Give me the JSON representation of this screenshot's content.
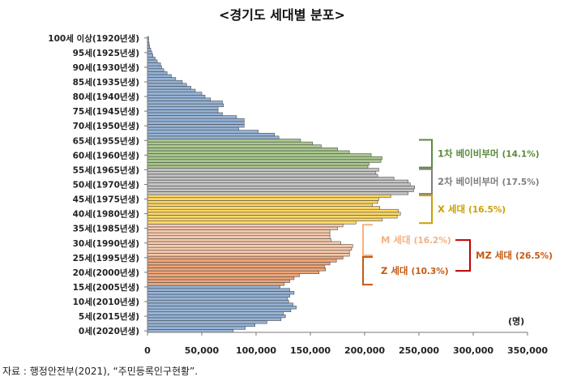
{
  "chart_data": {
    "type": "bar",
    "orientation": "horizontal",
    "title": "<경기도 세대별 분포>",
    "unit_label": "(명)",
    "xlim": [
      0,
      350000
    ],
    "x_ticks": [
      0,
      50000,
      100000,
      150000,
      200000,
      250000,
      300000,
      350000
    ],
    "x_tick_labels": [
      "0",
      "50,000",
      "100,000",
      "150,000",
      "200,000",
      "250,000",
      "300,000",
      "350,000"
    ],
    "age_labels": [
      {
        "age": 0,
        "label": "0세(2020년생)"
      },
      {
        "age": 5,
        "label": "5세(2015년생)"
      },
      {
        "age": 10,
        "label": "10세(2010년생)"
      },
      {
        "age": 15,
        "label": "15세(2005년생)"
      },
      {
        "age": 20,
        "label": "20세(2000년생)"
      },
      {
        "age": 25,
        "label": "25세(1995년생)"
      },
      {
        "age": 30,
        "label": "30세(1990년생)"
      },
      {
        "age": 35,
        "label": "35세(1985년생)"
      },
      {
        "age": 40,
        "label": "40세(1980년생)"
      },
      {
        "age": 45,
        "label": "45세(1975년생)"
      },
      {
        "age": 50,
        "label": "50세(1970년생)"
      },
      {
        "age": 55,
        "label": "55세(1965년생)"
      },
      {
        "age": 60,
        "label": "60세(1960년생)"
      },
      {
        "age": 65,
        "label": "65세(1955년생)"
      },
      {
        "age": 70,
        "label": "70세(1950년생)"
      },
      {
        "age": 75,
        "label": "75세(1945년생)"
      },
      {
        "age": 80,
        "label": "80세(1940년생)"
      },
      {
        "age": 85,
        "label": "85세(1935년생)"
      },
      {
        "age": 90,
        "label": "90세(1930년생)"
      },
      {
        "age": 95,
        "label": "95세(1925년생)"
      },
      {
        "age": 100,
        "label": "100세 이상(1920년생)"
      }
    ],
    "ages": "0-100",
    "values": [
      79000,
      90000,
      99000,
      110000,
      123000,
      127000,
      125000,
      132000,
      137000,
      134000,
      130000,
      129000,
      131000,
      135000,
      131000,
      122000,
      126000,
      131000,
      135000,
      140000,
      158000,
      164000,
      163000,
      168000,
      174000,
      180000,
      186000,
      186000,
      188000,
      189000,
      178000,
      169000,
      168000,
      168000,
      168000,
      175000,
      180000,
      192000,
      216000,
      230000,
      233000,
      231000,
      214000,
      207000,
      212000,
      213000,
      224000,
      240000,
      245000,
      246000,
      242000,
      240000,
      227000,
      212000,
      210000,
      213000,
      203000,
      204000,
      215000,
      216000,
      206000,
      186000,
      175000,
      160000,
      152000,
      141000,
      121000,
      117000,
      102000,
      84000,
      89000,
      89000,
      89000,
      82000,
      69000,
      65000,
      65000,
      70000,
      69000,
      58000,
      53000,
      50000,
      44000,
      40000,
      36000,
      32000,
      26000,
      22000,
      18000,
      15000,
      13000,
      12000,
      9000,
      7000,
      5000,
      4000,
      3000,
      2000,
      1500,
      1000,
      1000
    ],
    "groups": [
      {
        "name": "1차 베이비부머",
        "share": "(14.1%)",
        "age_range": [
          56,
          65
        ],
        "fill": "#a9c98c",
        "text_color": "#5b8a3c"
      },
      {
        "name": "2차 베이비부머",
        "share": "(17.5%)",
        "age_range": [
          47,
          55
        ],
        "fill": "#c4c4c4",
        "text_color": "#7f7f7f"
      },
      {
        "name": "X 세대",
        "share": "(16.5%)",
        "age_range": [
          37,
          46
        ],
        "fill": "#ffd966",
        "text_color": "#c9a100"
      },
      {
        "name": "M 세대",
        "share": "(16.2%)",
        "age_range": [
          26,
          36
        ],
        "fill": "#f8cbad",
        "text_color": "#f4b183"
      },
      {
        "name": "Z 세대",
        "share": "(10.3%)",
        "age_range": [
          16,
          25
        ],
        "fill": "#eea679",
        "text_color": "#c55a11"
      },
      {
        "name": "MZ 세대",
        "share": "(26.5%)",
        "age_range": [
          16,
          36
        ],
        "fill": "",
        "text_color": "#c55a11",
        "bracket_color": "#c00000"
      }
    ],
    "default_fill": "#95b3d7",
    "grid": false
  },
  "source": "자료 : 행정안전부(2021), “주민등록인구현황”."
}
